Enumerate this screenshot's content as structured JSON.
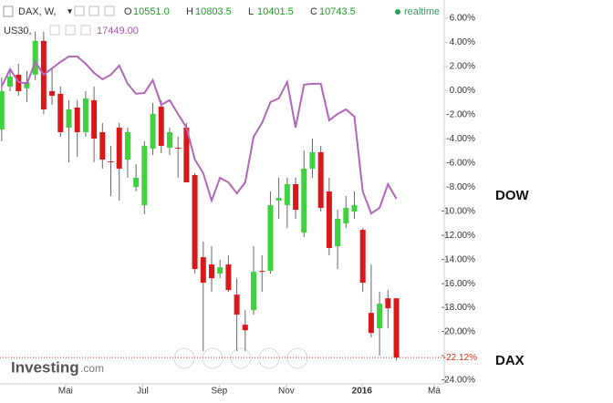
{
  "chart_data": {
    "type": "candlestick",
    "title": "DAX, W,",
    "ohlc_header": {
      "labels": [
        "O",
        "H",
        "L",
        "C"
      ],
      "values": [
        "10551.0",
        "10803.5",
        "10401.5",
        "10743.5"
      ]
    },
    "realtime": "realtime",
    "overlay_symbol": "US30,",
    "overlay_value": "17449.00",
    "brand": {
      "main": "Investing",
      "suffix": ".com"
    },
    "xlim": [
      -0.2,
      52.7
    ],
    "xticks": [
      {
        "value": 7.6,
        "label": "Mai"
      },
      {
        "value": 16.8,
        "label": "Jul"
      },
      {
        "value": 25.9,
        "label": "Sep"
      },
      {
        "value": 33.9,
        "label": "Nov"
      },
      {
        "value": 42.9,
        "label": "2016"
      },
      {
        "value": 51.5,
        "label": "Mä"
      }
    ],
    "ylim": [
      -24.3,
      7.5
    ],
    "yticks": [
      {
        "value": 6,
        "label": "6.00%"
      },
      {
        "value": 4,
        "label": "4.00%"
      },
      {
        "value": 2,
        "label": "2.00%"
      },
      {
        "value": 0,
        "label": "0.00%"
      },
      {
        "value": -2,
        "label": "-2.00%"
      },
      {
        "value": -4,
        "label": "-4.00%"
      },
      {
        "value": -6,
        "label": "-6.00%"
      },
      {
        "value": -8,
        "label": "-8.00%"
      },
      {
        "value": -10,
        "label": "-10.00%"
      },
      {
        "value": -12,
        "label": "-12.00%"
      },
      {
        "value": -14,
        "label": "-14.00%"
      },
      {
        "value": -16,
        "label": "-16.00%"
      },
      {
        "value": -18,
        "label": "-18.00%"
      },
      {
        "value": -20,
        "label": "-20.00%"
      },
      {
        "value": -22,
        "label": "-22.00%"
      },
      {
        "value": -24,
        "label": "-24.00%"
      }
    ],
    "last_marker": {
      "value": -22.12,
      "label": "-22.12%",
      "color": "#e0301e"
    },
    "series": [
      {
        "name": "DAX",
        "up_color": "#3fd13f",
        "down_color": "#d8191b",
        "wick_color": "#666666",
        "open": [
          -3.22,
          0.33,
          1.31,
          0.18,
          1.31,
          4.11,
          -0.05,
          -0.27,
          -3.07,
          -1.41,
          -3.45,
          -0.8,
          -3.45,
          -5.87,
          -3.07,
          -5.72,
          -7.99,
          -9.5,
          -4.81,
          -1.33,
          -4.74,
          -4.74,
          -3.07,
          -7.0,
          -13.81,
          -14.41,
          -15.17,
          -14.41,
          -16.91,
          -19.4,
          -18.19,
          -14.94,
          -14.94,
          -9.12,
          -9.5,
          -7.76,
          -11.77,
          -6.47,
          -5.11,
          -8.36,
          -12.9,
          -11.01,
          -10.03,
          -11.54,
          -18.42,
          -19.7,
          -17.21,
          -17.21
        ],
        "high": [
          1.09,
          1.84,
          2.22,
          1.62,
          4.87,
          4.87,
          1.84,
          0.33,
          -0.8,
          -0.8,
          -0.05,
          0.33,
          -2.69,
          -4.58,
          -2.69,
          -3.07,
          -6.1,
          -4.21,
          -1.03,
          -0.8,
          -3.07,
          -3.83,
          -2.69,
          -6.85,
          -12.52,
          -12.9,
          -14.03,
          -13.66,
          -15.55,
          -18.19,
          -12.9,
          -13.66,
          -8.36,
          -7.23,
          -7.23,
          -7.23,
          -4.96,
          -3.98,
          -4.58,
          -7.23,
          -9.88,
          -8.74,
          -8.36,
          -11.39,
          -14.41,
          -16.68,
          -16.53,
          -17.21
        ],
        "low": [
          -4.21,
          -0.05,
          -0.43,
          -0.96,
          0.86,
          -1.94,
          -1.18,
          -3.83,
          -5.94,
          -5.49,
          -3.83,
          -5.94,
          -6.47,
          -8.74,
          -9.12,
          -7.23,
          -8.36,
          -10.25,
          -5.34,
          -5.19,
          -5.34,
          -7.23,
          -7.61,
          -15.17,
          -21.59,
          -16.68,
          -15.55,
          -16.68,
          -21.59,
          -21.59,
          -18.57,
          -16.68,
          -15.17,
          -10.63,
          -11.39,
          -10.63,
          -12.14,
          -7.23,
          -10.03,
          -13.66,
          -14.79,
          -11.39,
          -10.63,
          -16.68,
          -20.46,
          -21.97,
          -19.7,
          -22.35
        ],
        "close": [
          -0.05,
          1.16,
          -0.05,
          0.71,
          4.11,
          -1.56,
          -0.43,
          -3.45,
          -1.56,
          -3.45,
          -0.65,
          -3.98,
          -5.72,
          -5.94,
          -6.47,
          -3.45,
          -7.23,
          -4.58,
          -1.94,
          -4.58,
          -3.45,
          -4.81,
          -7.61,
          -14.79,
          -15.92,
          -15.55,
          -14.64,
          -16.53,
          -18.57,
          -19.86,
          -15.02,
          -15.02,
          -9.5,
          -8.89,
          -7.76,
          -9.88,
          -6.47,
          -5.11,
          -9.72,
          -13.05,
          -10.63,
          -9.72,
          -9.5,
          -15.92,
          -20.08,
          -17.66,
          -18.04,
          -22.12
        ]
      },
      {
        "name": "DOW",
        "type": "line",
        "color": "#b166ba",
        "values": [
          0.33,
          1.77,
          0.71,
          0.56,
          2.37,
          1.31,
          1.84,
          2.37,
          2.82,
          2.82,
          2.22,
          1.46,
          0.93,
          1.31,
          2.07,
          0.56,
          -0.27,
          -0.2,
          0.86,
          -1.18,
          -0.8,
          -1.94,
          -3.07,
          -5.72,
          -6.85,
          -9.12,
          -7.23,
          -7.61,
          -8.52,
          -7.61,
          -3.83,
          -2.69,
          -0.96,
          -0.65,
          0.71,
          -3.07,
          0.48,
          0.56,
          0.56,
          -2.47,
          -1.94,
          -1.56,
          -2.16,
          -8.36,
          -10.18,
          -9.72,
          -7.76,
          -8.97
        ]
      }
    ]
  }
}
